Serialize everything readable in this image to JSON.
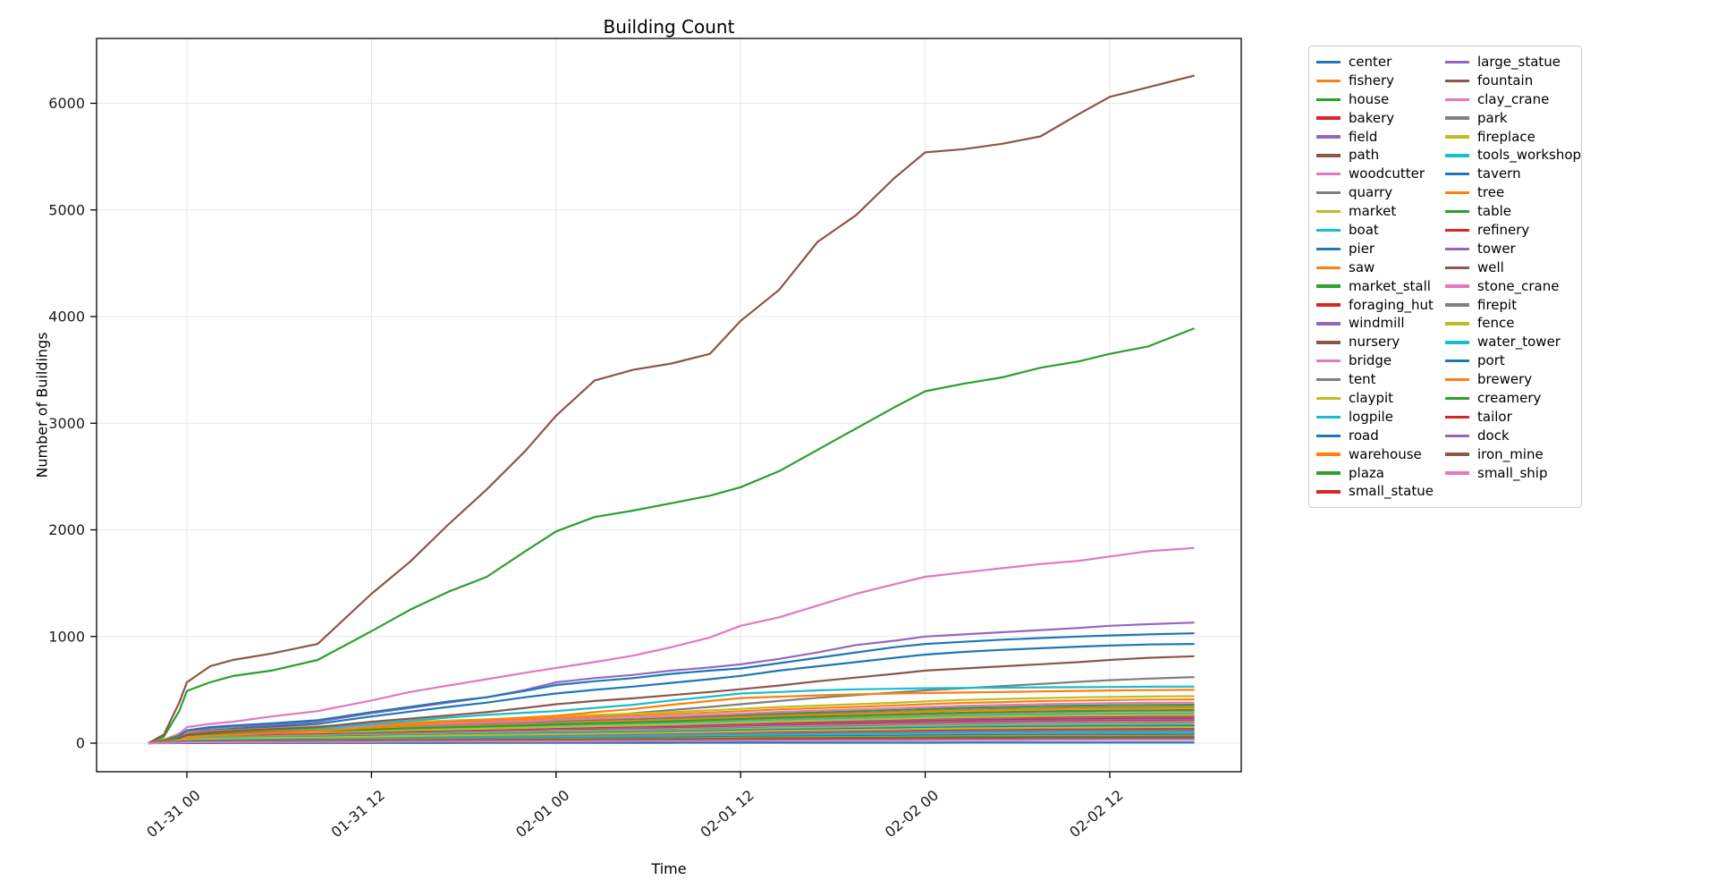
{
  "figure": {
    "title": "Building Count",
    "xlabel": "Time",
    "ylabel": "Number of Buildings"
  },
  "chart_data": {
    "type": "line",
    "title": "Building Count",
    "xlabel": "Time",
    "ylabel": "Number of Buildings",
    "grid": true,
    "legend_position": "outside-right",
    "legend_columns": 2,
    "x_tick_labels": [
      "01-31 00",
      "01-31 12",
      "02-01 00",
      "02-01 12",
      "02-02 00",
      "02-02 12"
    ],
    "x_tick_hours": [
      2.5,
      14.5,
      26.5,
      38.5,
      50.5,
      62.5
    ],
    "y_ticks": [
      0,
      1000,
      2000,
      3000,
      4000,
      5000,
      6000
    ],
    "ylim": [
      -270,
      6590
    ],
    "x_hours": [
      0,
      1,
      2,
      2.5,
      4,
      5.5,
      8,
      11,
      14.5,
      17,
      19.5,
      22,
      24.5,
      26.5,
      29,
      31.5,
      34,
      36.5,
      38.5,
      41,
      43.5,
      46,
      48.5,
      50.5,
      53,
      55.5,
      58,
      60.5,
      62.5,
      65,
      68
    ],
    "minor_profile": [
      0,
      0.08,
      0.17,
      0.23,
      0.27,
      0.3,
      0.33,
      0.36,
      0.41,
      0.45,
      0.48,
      0.51,
      0.54,
      0.57,
      0.6,
      0.63,
      0.66,
      0.7,
      0.73,
      0.77,
      0.8,
      0.83,
      0.86,
      0.89,
      0.92,
      0.94,
      0.96,
      0.975,
      0.985,
      0.995,
      1.0
    ],
    "palette": [
      "#1f77b4",
      "#ff7f0e",
      "#2ca02c",
      "#d62728",
      "#9467bd",
      "#8c564b",
      "#e377c2",
      "#7f7f7f",
      "#bcbd22",
      "#17becf"
    ],
    "series": [
      {
        "name": "center",
        "color": "#1f77b4",
        "end": 5
      },
      {
        "name": "fishery",
        "color": "#ff7f0e",
        "end": 300
      },
      {
        "name": "house",
        "color": "#2ca02c",
        "values": [
          0,
          60,
          300,
          490,
          570,
          630,
          680,
          780,
          1050,
          1250,
          1420,
          1560,
          1800,
          1985,
          2120,
          2180,
          2250,
          2320,
          2400,
          2550,
          2750,
          2950,
          3150,
          3300,
          3370,
          3430,
          3520,
          3580,
          3650,
          3720,
          3890
        ]
      },
      {
        "name": "bakery",
        "color": "#d62728",
        "end": 155
      },
      {
        "name": "field",
        "color": "#9467bd",
        "values": [
          0,
          20,
          60,
          110,
          140,
          155,
          170,
          200,
          280,
          330,
          380,
          430,
          500,
          570,
          610,
          640,
          680,
          710,
          739,
          790,
          850,
          920,
          960,
          1000,
          1020,
          1040,
          1060,
          1080,
          1100,
          1115,
          1130
        ]
      },
      {
        "name": "path",
        "color": "#8c564b",
        "values": [
          0,
          80,
          380,
          570,
          720,
          780,
          840,
          930,
          1400,
          1700,
          2050,
          2380,
          2740,
          3070,
          3400,
          3500,
          3560,
          3650,
          3960,
          4250,
          4700,
          4950,
          5300,
          5540,
          5570,
          5620,
          5690,
          5900,
          6060,
          6150,
          6260
        ]
      },
      {
        "name": "woodcutter",
        "color": "#e377c2",
        "values": [
          0,
          30,
          90,
          150,
          180,
          200,
          250,
          300,
          400,
          480,
          540,
          600,
          660,
          705,
          760,
          820,
          900,
          990,
          1100,
          1180,
          1290,
          1400,
          1490,
          1560,
          1600,
          1640,
          1680,
          1710,
          1750,
          1800,
          1830
        ]
      },
      {
        "name": "quarry",
        "color": "#7f7f7f",
        "values": [
          0,
          12,
          35,
          60,
          75,
          85,
          100,
          115,
          150,
          175,
          195,
          210,
          220,
          228,
          250,
          280,
          310,
          340,
          365,
          395,
          425,
          450,
          475,
          495,
          515,
          535,
          555,
          575,
          590,
          605,
          620
        ]
      },
      {
        "name": "market",
        "color": "#bcbd22",
        "end": 440
      },
      {
        "name": "boat",
        "color": "#17becf",
        "end": 280
      },
      {
        "name": "pier",
        "color": "#1f77b4",
        "values": [
          0,
          20,
          55,
          95,
          120,
          135,
          155,
          180,
          250,
          295,
          340,
          380,
          430,
          465,
          500,
          530,
          565,
          600,
          631,
          680,
          720,
          760,
          800,
          830,
          855,
          875,
          890,
          905,
          915,
          925,
          930
        ]
      },
      {
        "name": "saw",
        "color": "#ff7f0e",
        "end": 410
      },
      {
        "name": "market_stall",
        "color": "#2ca02c",
        "end": 360
      },
      {
        "name": "foraging_hut",
        "color": "#d62728",
        "end": 250
      },
      {
        "name": "windmill",
        "color": "#9467bd",
        "end": 240
      },
      {
        "name": "nursery",
        "color": "#8c564b",
        "end": 100
      },
      {
        "name": "bridge",
        "color": "#e377c2",
        "end": 380
      },
      {
        "name": "tent",
        "color": "#7f7f7f",
        "end": 340
      },
      {
        "name": "claypit",
        "color": "#bcbd22",
        "end": 265
      },
      {
        "name": "logpile",
        "color": "#17becf",
        "values": [
          0,
          15,
          40,
          70,
          90,
          100,
          115,
          135,
          180,
          210,
          240,
          265,
          285,
          300,
          330,
          360,
          400,
          435,
          465,
          480,
          495,
          505,
          510,
          515,
          518,
          520,
          523,
          525,
          527,
          529,
          530
        ]
      },
      {
        "name": "road",
        "color": "#1f77b4",
        "values": [
          0,
          25,
          70,
          120,
          150,
          165,
          185,
          215,
          290,
          340,
          390,
          430,
          490,
          545,
          580,
          610,
          650,
          680,
          700,
          750,
          800,
          850,
          900,
          930,
          950,
          970,
          985,
          1000,
          1010,
          1020,
          1030
        ]
      },
      {
        "name": "warehouse",
        "color": "#ff7f0e",
        "end": 330
      },
      {
        "name": "plaza",
        "color": "#2ca02c",
        "end": 310
      },
      {
        "name": "small_statue",
        "color": "#d62728",
        "end": 230
      },
      {
        "name": "large_statue",
        "color": "#9467bd",
        "end": 220
      },
      {
        "name": "fountain",
        "color": "#8c564b",
        "end": 210
      },
      {
        "name": "clay_crane",
        "color": "#e377c2",
        "end": 200
      },
      {
        "name": "park",
        "color": "#7f7f7f",
        "end": 190
      },
      {
        "name": "fireplace",
        "color": "#bcbd22",
        "end": 180
      },
      {
        "name": "tools_workshop",
        "color": "#17becf",
        "end": 170
      },
      {
        "name": "tavern",
        "color": "#1f77b4",
        "end": 160
      },
      {
        "name": "tree",
        "color": "#ff7f0e",
        "values": [
          0,
          10,
          30,
          55,
          70,
          80,
          95,
          110,
          150,
          175,
          200,
          220,
          240,
          257,
          290,
          320,
          360,
          395,
          423,
          435,
          448,
          458,
          465,
          470,
          475,
          480,
          485,
          490,
          494,
          497,
          500
        ]
      },
      {
        "name": "table",
        "color": "#2ca02c",
        "end": 140
      },
      {
        "name": "refinery",
        "color": "#d62728",
        "end": 130
      },
      {
        "name": "tower",
        "color": "#9467bd",
        "end": 120
      },
      {
        "name": "well",
        "color": "#8c564b",
        "values": [
          0,
          15,
          45,
          80,
          100,
          115,
          130,
          150,
          200,
          230,
          260,
          290,
          330,
          365,
          395,
          420,
          450,
          480,
          506,
          540,
          580,
          615,
          650,
          680,
          700,
          720,
          740,
          760,
          780,
          800,
          815
        ]
      },
      {
        "name": "stone_crane",
        "color": "#e377c2",
        "end": 90
      },
      {
        "name": "firepit",
        "color": "#7f7f7f",
        "end": 110
      },
      {
        "name": "fence",
        "color": "#bcbd22",
        "end": 150
      },
      {
        "name": "water_tower",
        "color": "#17becf",
        "end": 100
      },
      {
        "name": "port",
        "color": "#1f77b4",
        "end": 80
      },
      {
        "name": "brewery",
        "color": "#ff7f0e",
        "end": 70
      },
      {
        "name": "creamery",
        "color": "#2ca02c",
        "end": 60
      },
      {
        "name": "tailor",
        "color": "#d62728",
        "end": 45
      },
      {
        "name": "dock",
        "color": "#9467bd",
        "end": 40
      },
      {
        "name": "iron_mine",
        "color": "#8c564b",
        "end": 50
      },
      {
        "name": "small_ship",
        "color": "#e377c2",
        "end": 30
      }
    ],
    "style": {
      "grid_color": "#e7e7e7",
      "axis_color": "#000000",
      "text_color": "#1a1a1a",
      "background": "#ffffff",
      "line_width": 2.2
    }
  }
}
